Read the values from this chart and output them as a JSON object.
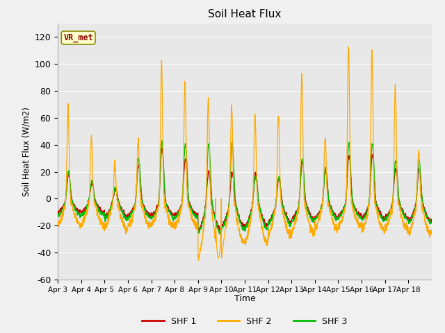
{
  "title": "Soil Heat Flux",
  "ylabel": "Soil Heat Flux (W/m2)",
  "xlabel": "Time",
  "ylim": [
    -60,
    130
  ],
  "yticks": [
    -60,
    -40,
    -20,
    0,
    20,
    40,
    60,
    80,
    100,
    120
  ],
  "x_labels": [
    "Apr 3",
    "Apr 4",
    "Apr 5",
    "Apr 6",
    "Apr 7",
    "Apr 8",
    "Apr 9",
    "Apr 10",
    "Apr 11",
    "Apr 12",
    "Apr 13",
    "Apr 14",
    "Apr 15",
    "Apr 16",
    "Apr 17",
    "Apr 18"
  ],
  "shf1_color": "#cc0000",
  "shf2_color": "#ffaa00",
  "shf3_color": "#00bb00",
  "bg_color": "#f0f0f0",
  "plot_bg": "#e8e8e8",
  "vr_met_text": "VR_met",
  "vr_met_bg": "#ffffcc",
  "vr_met_border": "#999900",
  "legend_labels": [
    "SHF 1",
    "SHF 2",
    "SHF 3"
  ],
  "n_days": 16,
  "pts_per_day": 144,
  "shf2_peaks": [
    68,
    46,
    25,
    44,
    101,
    86,
    75,
    68,
    62,
    62,
    93,
    46,
    113,
    111,
    84,
    35
  ],
  "shf1_peaks": [
    18,
    11,
    7,
    25,
    38,
    29,
    20,
    20,
    19,
    15,
    28,
    21,
    32,
    32,
    22,
    22
  ],
  "shf3_peaks": [
    20,
    13,
    8,
    30,
    42,
    41,
    41,
    41,
    16,
    16,
    29,
    22,
    41,
    41,
    28,
    27
  ],
  "shf2_night": [
    -19,
    -19,
    -22,
    -20,
    -20,
    -20,
    -44,
    -32,
    -32,
    -27,
    -25,
    -22,
    -20,
    -23,
    -22,
    -26
  ],
  "shf1_night": [
    -10,
    -10,
    -13,
    -12,
    -12,
    -12,
    -23,
    -20,
    -20,
    -17,
    -15,
    -14,
    -12,
    -14,
    -14,
    -16
  ],
  "shf3_night": [
    -12,
    -12,
    -15,
    -14,
    -14,
    -14,
    -25,
    -22,
    -22,
    -19,
    -17,
    -15,
    -14,
    -16,
    -15,
    -18
  ]
}
